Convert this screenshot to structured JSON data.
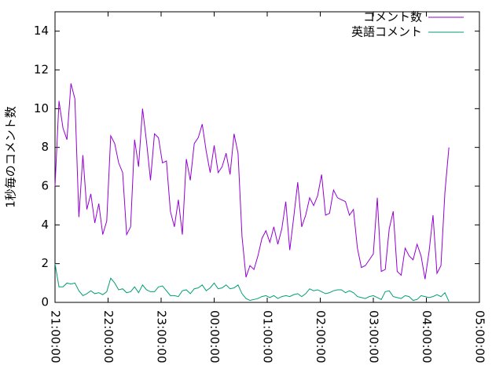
{
  "chart_data": {
    "type": "line",
    "ylabel": "1秒毎のコメント数",
    "x": [
      21,
      21.075,
      21.15,
      21.225,
      21.3,
      21.375,
      21.45,
      21.525,
      21.6,
      21.675,
      21.75,
      21.825,
      21.9,
      21.975,
      22.05,
      22.125,
      22.2,
      22.275,
      22.35,
      22.425,
      22.5,
      22.575,
      22.65,
      22.725,
      22.8,
      22.875,
      22.95,
      23.025,
      23.1,
      23.175,
      23.25,
      23.325,
      23.4,
      23.475,
      23.55,
      23.625,
      23.7,
      23.775,
      23.85,
      23.925,
      24,
      24.075,
      24.15,
      24.225,
      24.3,
      24.375,
      24.45,
      24.525,
      24.6,
      24.675,
      24.75,
      24.825,
      24.9,
      24.975,
      25.05,
      25.125,
      25.2,
      25.275,
      25.35,
      25.425,
      25.5,
      25.575,
      25.65,
      25.725,
      25.8,
      25.875,
      25.95,
      26.025,
      26.1,
      26.175,
      26.25,
      26.325,
      26.4,
      26.475,
      26.55,
      26.625,
      26.7,
      26.775,
      26.85,
      26.925,
      27,
      27.075,
      27.15,
      27.225,
      27.3,
      27.375,
      27.45,
      27.525,
      27.6,
      27.675,
      27.75,
      27.825,
      27.9,
      27.975,
      28.05,
      28.125,
      28.2,
      28.275,
      28.35,
      28.425
    ],
    "series": [
      {
        "name": "コメント数",
        "color": "#9400d3",
        "values": [
          6.0,
          10.4,
          9.0,
          8.4,
          11.3,
          10.5,
          4.4,
          7.6,
          4.8,
          5.6,
          4.1,
          5.1,
          3.5,
          4.2,
          8.6,
          8.2,
          7.2,
          6.7,
          3.5,
          3.9,
          8.4,
          7.0,
          10.0,
          8.3,
          6.3,
          8.7,
          8.5,
          7.2,
          7.3,
          4.7,
          3.9,
          5.3,
          3.5,
          7.4,
          6.3,
          8.2,
          8.5,
          9.2,
          7.8,
          6.7,
          8.1,
          6.7,
          7.0,
          7.7,
          6.6,
          8.7,
          7.7,
          3.4,
          1.3,
          1.9,
          1.7,
          2.4,
          3.3,
          3.7,
          3.1,
          3.9,
          3.0,
          3.8,
          5.2,
          2.7,
          4.4,
          6.2,
          3.9,
          4.5,
          5.4,
          5.0,
          5.5,
          6.6,
          4.5,
          4.6,
          5.8,
          5.4,
          5.3,
          5.2,
          4.5,
          4.8,
          2.8,
          1.8,
          1.9,
          2.2,
          2.5,
          5.4,
          1.6,
          1.7,
          3.8,
          4.7,
          1.6,
          1.4,
          2.8,
          2.4,
          2.2,
          3.0,
          2.4,
          1.2,
          2.6,
          4.5,
          1.5,
          1.9,
          5.7,
          8.0
        ]
      },
      {
        "name": "英語コメント",
        "color": "#009e73",
        "values": [
          2.0,
          0.8,
          0.8,
          1.0,
          0.95,
          1.0,
          0.6,
          0.35,
          0.45,
          0.6,
          0.45,
          0.5,
          0.4,
          0.55,
          1.25,
          1.0,
          0.65,
          0.7,
          0.5,
          0.55,
          0.8,
          0.5,
          0.9,
          0.65,
          0.55,
          0.55,
          0.8,
          0.85,
          0.6,
          0.35,
          0.35,
          0.3,
          0.6,
          0.65,
          0.45,
          0.7,
          0.75,
          0.9,
          0.6,
          0.75,
          1.0,
          0.7,
          0.75,
          0.9,
          0.7,
          0.75,
          0.9,
          0.45,
          0.2,
          0.1,
          0.15,
          0.2,
          0.3,
          0.35,
          0.25,
          0.35,
          0.2,
          0.3,
          0.35,
          0.3,
          0.4,
          0.45,
          0.3,
          0.45,
          0.7,
          0.6,
          0.65,
          0.55,
          0.45,
          0.5,
          0.6,
          0.65,
          0.65,
          0.5,
          0.6,
          0.5,
          0.3,
          0.25,
          0.2,
          0.3,
          0.35,
          0.25,
          0.15,
          0.55,
          0.6,
          0.3,
          0.25,
          0.2,
          0.35,
          0.3,
          0.1,
          0.15,
          0.35,
          0.3,
          0.25,
          0.3,
          0.4,
          0.3,
          0.5,
          0.05
        ]
      }
    ],
    "xlim": [
      21,
      29
    ],
    "xticks": [
      {
        "value": 21,
        "label": "21:00:00"
      },
      {
        "value": 22,
        "label": "22:00:00"
      },
      {
        "value": 23,
        "label": "23:00:00"
      },
      {
        "value": 24,
        "label": "00:00:00"
      },
      {
        "value": 25,
        "label": "01:00:00"
      },
      {
        "value": 26,
        "label": "02:00:00"
      },
      {
        "value": 27,
        "label": "03:00:00"
      },
      {
        "value": 28,
        "label": "04:00:00"
      },
      {
        "value": 29,
        "label": "05:00:00"
      }
    ],
    "ylim": [
      0,
      15
    ],
    "yticks": [
      0,
      2,
      4,
      6,
      8,
      10,
      12,
      14
    ],
    "legend": "upper right",
    "grid": false
  }
}
